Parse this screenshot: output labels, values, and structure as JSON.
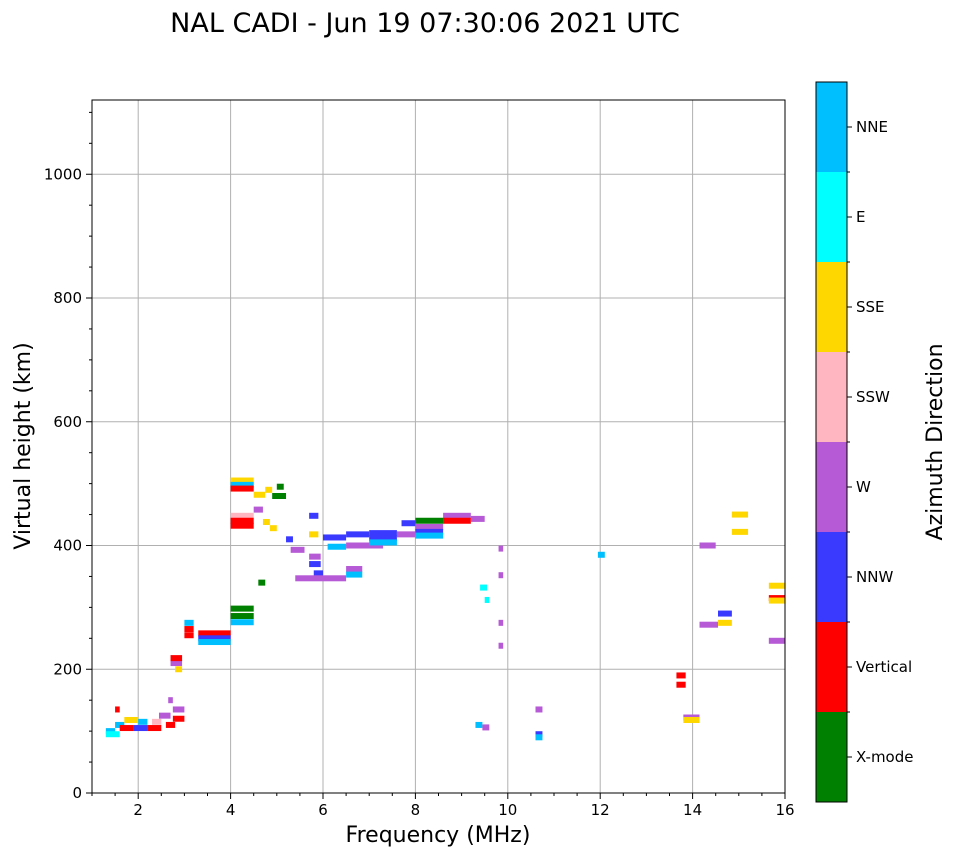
{
  "chart_data": {
    "type": "scatter",
    "title": "NAL CADI - Jun 19 07:30:06 2021 UTC",
    "xlabel": "Frequency (MHz)",
    "ylabel": "Virtual height (km)",
    "xlim": [
      1,
      16
    ],
    "ylim": [
      0,
      1120
    ],
    "xticks": [
      2,
      4,
      6,
      8,
      10,
      12,
      14,
      16
    ],
    "yticks": [
      0,
      200,
      400,
      600,
      800,
      1000
    ],
    "grid": true,
    "colorbar": {
      "label": "Azimuth Direction",
      "categories": [
        "X-mode",
        "Vertical",
        "NNW",
        "W",
        "SSW",
        "SSE",
        "E",
        "NNE"
      ],
      "colors": [
        "#008000",
        "#ff0000",
        "#3a3aff",
        "#b65ad6",
        "#ffb6c1",
        "#ffd700",
        "#00ffff",
        "#00bfff"
      ]
    },
    "points": [
      {
        "x0": 1.3,
        "x1": 1.5,
        "y": 100,
        "c": "NNE"
      },
      {
        "x0": 1.3,
        "x1": 1.6,
        "y": 95,
        "c": "E"
      },
      {
        "x0": 1.5,
        "x1": 1.7,
        "y": 110,
        "c": "NNE"
      },
      {
        "x0": 1.5,
        "x1": 1.6,
        "y": 135,
        "c": "Vertical"
      },
      {
        "x0": 1.6,
        "x1": 1.9,
        "y": 105,
        "c": "Vertical"
      },
      {
        "x0": 1.7,
        "x1": 2.0,
        "y": 118,
        "c": "SSE"
      },
      {
        "x0": 1.9,
        "x1": 2.2,
        "y": 105,
        "c": "NNW"
      },
      {
        "x0": 2.0,
        "x1": 2.2,
        "y": 115,
        "c": "NNE"
      },
      {
        "x0": 2.2,
        "x1": 2.5,
        "y": 105,
        "c": "Vertical"
      },
      {
        "x0": 2.3,
        "x1": 2.5,
        "y": 115,
        "c": "SSW"
      },
      {
        "x0": 2.45,
        "x1": 2.7,
        "y": 125,
        "c": "W"
      },
      {
        "x0": 2.6,
        "x1": 2.8,
        "y": 110,
        "c": "Vertical"
      },
      {
        "x0": 2.65,
        "x1": 2.75,
        "y": 150,
        "c": "W"
      },
      {
        "x0": 2.75,
        "x1": 3.0,
        "y": 120,
        "c": "Vertical"
      },
      {
        "x0": 2.75,
        "x1": 3.0,
        "y": 135,
        "c": "W"
      },
      {
        "x0": 2.7,
        "x1": 2.95,
        "y": 210,
        "c": "W"
      },
      {
        "x0": 2.7,
        "x1": 2.95,
        "y": 218,
        "c": "Vertical"
      },
      {
        "x0": 2.8,
        "x1": 2.95,
        "y": 200,
        "c": "SSE"
      },
      {
        "x0": 3.0,
        "x1": 3.2,
        "y": 275,
        "c": "NNE"
      },
      {
        "x0": 3.0,
        "x1": 3.2,
        "y": 265,
        "c": "Vertical"
      },
      {
        "x0": 3.0,
        "x1": 3.2,
        "y": 255,
        "c": "Vertical"
      },
      {
        "x0": 3.3,
        "x1": 4.0,
        "y": 258,
        "c": "Vertical"
      },
      {
        "x0": 3.3,
        "x1": 4.0,
        "y": 250,
        "c": "NNW"
      },
      {
        "x0": 3.3,
        "x1": 4.0,
        "y": 244,
        "c": "NNE"
      },
      {
        "x0": 4.0,
        "x1": 4.5,
        "y": 298,
        "c": "X-mode"
      },
      {
        "x0": 4.0,
        "x1": 4.5,
        "y": 286,
        "c": "X-mode"
      },
      {
        "x0": 4.0,
        "x1": 4.5,
        "y": 276,
        "c": "NNE"
      },
      {
        "x0": 4.6,
        "x1": 4.75,
        "y": 340,
        "c": "X-mode"
      },
      {
        "x0": 4.0,
        "x1": 4.5,
        "y": 505,
        "c": "SSE"
      },
      {
        "x0": 4.0,
        "x1": 4.5,
        "y": 498,
        "c": "NNE"
      },
      {
        "x0": 4.0,
        "x1": 4.5,
        "y": 492,
        "c": "Vertical"
      },
      {
        "x0": 4.5,
        "x1": 4.75,
        "y": 482,
        "c": "SSE"
      },
      {
        "x0": 4.75,
        "x1": 4.9,
        "y": 490,
        "c": "SSE"
      },
      {
        "x0": 4.9,
        "x1": 5.2,
        "y": 480,
        "c": "X-mode"
      },
      {
        "x0": 5.0,
        "x1": 5.15,
        "y": 495,
        "c": "X-mode"
      },
      {
        "x0": 4.0,
        "x1": 4.5,
        "y": 448,
        "c": "SSW"
      },
      {
        "x0": 4.0,
        "x1": 4.5,
        "y": 440,
        "c": "Vertical"
      },
      {
        "x0": 4.0,
        "x1": 4.5,
        "y": 432,
        "c": "Vertical"
      },
      {
        "x0": 4.5,
        "x1": 4.7,
        "y": 458,
        "c": "W"
      },
      {
        "x0": 4.7,
        "x1": 4.85,
        "y": 438,
        "c": "SSE"
      },
      {
        "x0": 4.85,
        "x1": 5.0,
        "y": 428,
        "c": "SSE"
      },
      {
        "x0": 5.7,
        "x1": 5.9,
        "y": 418,
        "c": "SSE"
      },
      {
        "x0": 5.7,
        "x1": 5.9,
        "y": 448,
        "c": "NNW"
      },
      {
        "x0": 5.2,
        "x1": 5.35,
        "y": 410,
        "c": "NNW"
      },
      {
        "x0": 5.3,
        "x1": 5.6,
        "y": 393,
        "c": "W"
      },
      {
        "x0": 5.7,
        "x1": 5.95,
        "y": 382,
        "c": "W"
      },
      {
        "x0": 5.7,
        "x1": 5.95,
        "y": 370,
        "c": "NNW"
      },
      {
        "x0": 5.8,
        "x1": 6.0,
        "y": 355,
        "c": "NNW"
      },
      {
        "x0": 5.4,
        "x1": 6.5,
        "y": 347,
        "c": "W"
      },
      {
        "x0": 6.5,
        "x1": 6.85,
        "y": 362,
        "c": "W"
      },
      {
        "x0": 6.5,
        "x1": 6.85,
        "y": 353,
        "c": "NNE"
      },
      {
        "x0": 6.0,
        "x1": 6.5,
        "y": 413,
        "c": "NNW"
      },
      {
        "x0": 6.1,
        "x1": 6.5,
        "y": 398,
        "c": "NNE"
      },
      {
        "x0": 6.5,
        "x1": 7.3,
        "y": 400,
        "c": "W"
      },
      {
        "x0": 6.5,
        "x1": 7.0,
        "y": 418,
        "c": "NNW"
      },
      {
        "x0": 7.0,
        "x1": 7.6,
        "y": 420,
        "c": "NNW"
      },
      {
        "x0": 7.0,
        "x1": 7.6,
        "y": 412,
        "c": "NNW"
      },
      {
        "x0": 7.0,
        "x1": 7.6,
        "y": 405,
        "c": "NNE"
      },
      {
        "x0": 7.6,
        "x1": 8.0,
        "y": 418,
        "c": "W"
      },
      {
        "x0": 7.7,
        "x1": 8.0,
        "y": 436,
        "c": "NNW"
      },
      {
        "x0": 8.0,
        "x1": 8.6,
        "y": 440,
        "c": "X-mode"
      },
      {
        "x0": 8.0,
        "x1": 8.6,
        "y": 430,
        "c": "W"
      },
      {
        "x0": 8.0,
        "x1": 8.6,
        "y": 422,
        "c": "NNW"
      },
      {
        "x0": 8.0,
        "x1": 8.6,
        "y": 416,
        "c": "NNE"
      },
      {
        "x0": 8.6,
        "x1": 9.2,
        "y": 448,
        "c": "W"
      },
      {
        "x0": 8.6,
        "x1": 9.2,
        "y": 440,
        "c": "Vertical"
      },
      {
        "x0": 9.2,
        "x1": 9.5,
        "y": 443,
        "c": "W"
      },
      {
        "x0": 9.8,
        "x1": 9.9,
        "y": 395,
        "c": "W"
      },
      {
        "x0": 9.8,
        "x1": 9.9,
        "y": 352,
        "c": "W"
      },
      {
        "x0": 9.8,
        "x1": 9.9,
        "y": 275,
        "c": "W"
      },
      {
        "x0": 9.8,
        "x1": 9.9,
        "y": 238,
        "c": "W"
      },
      {
        "x0": 9.4,
        "x1": 9.55,
        "y": 332,
        "c": "E"
      },
      {
        "x0": 9.5,
        "x1": 9.6,
        "y": 312,
        "c": "E"
      },
      {
        "x0": 9.3,
        "x1": 9.45,
        "y": 110,
        "c": "NNE"
      },
      {
        "x0": 9.45,
        "x1": 9.6,
        "y": 106,
        "c": "W"
      },
      {
        "x0": 10.6,
        "x1": 10.75,
        "y": 135,
        "c": "W"
      },
      {
        "x0": 10.6,
        "x1": 10.75,
        "y": 95,
        "c": "NNW"
      },
      {
        "x0": 10.6,
        "x1": 10.75,
        "y": 90,
        "c": "NNE"
      },
      {
        "x0": 11.95,
        "x1": 12.1,
        "y": 385,
        "c": "NNE"
      },
      {
        "x0": 13.65,
        "x1": 13.85,
        "y": 190,
        "c": "Vertical"
      },
      {
        "x0": 13.65,
        "x1": 13.85,
        "y": 175,
        "c": "Vertical"
      },
      {
        "x0": 13.8,
        "x1": 14.15,
        "y": 122,
        "c": "W"
      },
      {
        "x0": 13.8,
        "x1": 14.15,
        "y": 118,
        "c": "SSE"
      },
      {
        "x0": 14.15,
        "x1": 14.5,
        "y": 400,
        "c": "W"
      },
      {
        "x0": 14.15,
        "x1": 14.55,
        "y": 272,
        "c": "W"
      },
      {
        "x0": 14.55,
        "x1": 14.85,
        "y": 290,
        "c": "NNW"
      },
      {
        "x0": 14.55,
        "x1": 14.85,
        "y": 275,
        "c": "SSE"
      },
      {
        "x0": 14.85,
        "x1": 15.2,
        "y": 450,
        "c": "SSE"
      },
      {
        "x0": 14.85,
        "x1": 15.2,
        "y": 422,
        "c": "SSE"
      },
      {
        "x0": 15.65,
        "x1": 16.0,
        "y": 335,
        "c": "SSE"
      },
      {
        "x0": 15.65,
        "x1": 16.0,
        "y": 315,
        "c": "Vertical"
      },
      {
        "x0": 15.65,
        "x1": 16.0,
        "y": 311,
        "c": "SSE"
      },
      {
        "x0": 15.65,
        "x1": 16.0,
        "y": 246,
        "c": "W"
      }
    ]
  }
}
